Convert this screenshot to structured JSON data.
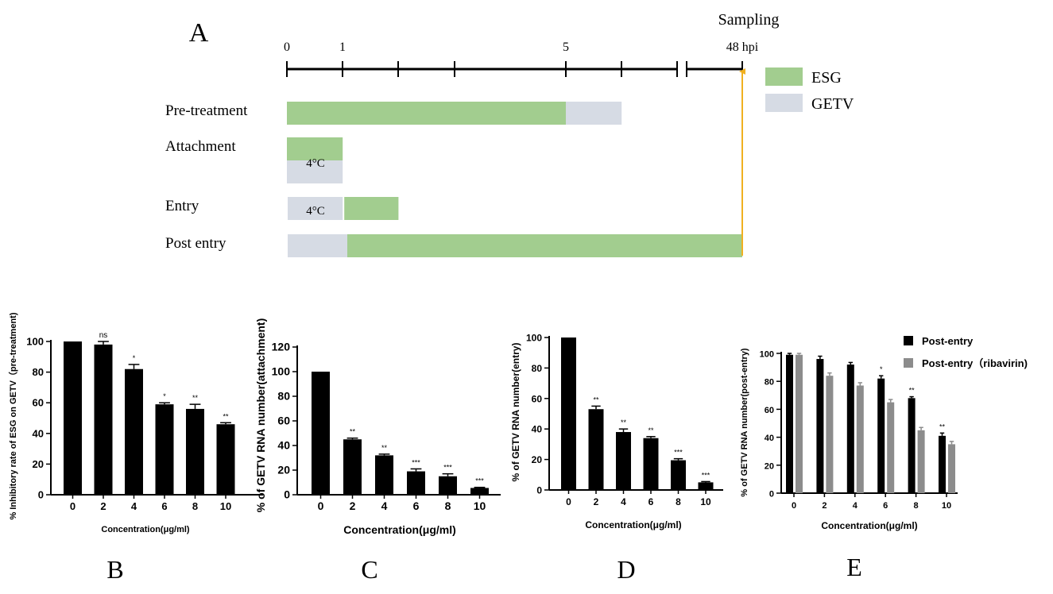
{
  "colors": {
    "esg": "#a2cd8f",
    "getv": "#d6dbe4",
    "arrow": "#f0b020",
    "bar_primary": "#000000",
    "bar_secondary": "#8c8c8c"
  },
  "panel_a": {
    "label": "A",
    "sampling_label": "Sampling",
    "timeline": {
      "ticks": [
        "0",
        "1",
        "5",
        "48 hpi"
      ],
      "unit_note": "hours post infection"
    },
    "legend": [
      {
        "name": "ESG",
        "color_key": "esg"
      },
      {
        "name": "GETV",
        "color_key": "getv"
      }
    ],
    "rows": [
      {
        "name": "Pre-treatment",
        "segments": [
          {
            "agent": "ESG",
            "start_h": 0,
            "end_h": 5
          },
          {
            "agent": "GETV",
            "start_h": 5,
            "end_h": 6
          }
        ]
      },
      {
        "name": "Attachment",
        "note": "4°C",
        "segments": [
          {
            "agent": "ESG",
            "start_h": 0,
            "end_h": 1,
            "stacked": "top"
          },
          {
            "agent": "GETV",
            "start_h": 0,
            "end_h": 1,
            "stacked": "bottom"
          }
        ]
      },
      {
        "name": "Entry",
        "note": "4°C",
        "segments": [
          {
            "agent": "GETV",
            "start_h": 0,
            "end_h": 1
          },
          {
            "agent": "ESG",
            "start_h": 1,
            "end_h": 2
          }
        ]
      },
      {
        "name": "Post entry",
        "segments": [
          {
            "agent": "GETV",
            "start_h": 0,
            "end_h": 1
          },
          {
            "agent": "ESG",
            "start_h": 1,
            "end_h": 48
          }
        ]
      }
    ]
  },
  "chart_data": [
    {
      "panel": "B",
      "type": "bar",
      "categories": [
        "0",
        "2",
        "4",
        "6",
        "8",
        "10"
      ],
      "series": [
        {
          "name": "ESG",
          "values": [
            100,
            98,
            82,
            59,
            56,
            46
          ],
          "errors": [
            0,
            2,
            3,
            1,
            3,
            1
          ],
          "sig": [
            "",
            "ns",
            "*",
            "*",
            "**",
            "**"
          ]
        }
      ],
      "title": "",
      "xlabel": "Concentration(μg/ml)",
      "ylabel": "% Inhibitory rate of ESG on GETV（pre-treatment)",
      "ylim": [
        0,
        100
      ],
      "yticks": [
        "0",
        "20",
        "40",
        "60",
        "80",
        "100"
      ],
      "grid": false
    },
    {
      "panel": "C",
      "type": "bar",
      "categories": [
        "0",
        "2",
        "4",
        "6",
        "8",
        "10"
      ],
      "series": [
        {
          "name": "ESG",
          "values": [
            100,
            45,
            32,
            19,
            15,
            5.5
          ],
          "errors": [
            0,
            1,
            1,
            2,
            2,
            0.5
          ],
          "sig": [
            "",
            "**",
            "**",
            "***",
            "***",
            "***"
          ]
        }
      ],
      "title": "",
      "xlabel": "Concentration(μg/ml)",
      "ylabel": "% of GETV RNA number(attachment)",
      "ylim": [
        0,
        120
      ],
      "yticks": [
        "0",
        "20",
        "40",
        "60",
        "80",
        "100",
        "120"
      ],
      "grid": false
    },
    {
      "panel": "D",
      "type": "bar",
      "categories": [
        "0",
        "2",
        "4",
        "6",
        "8",
        "10"
      ],
      "series": [
        {
          "name": "ESG",
          "values": [
            100,
            53,
            38,
            34,
            19.5,
            5
          ],
          "errors": [
            0,
            2,
            2,
            1,
            1,
            0.5
          ],
          "sig": [
            "",
            "**",
            "**",
            "**",
            "***",
            "***"
          ]
        }
      ],
      "title": "",
      "xlabel": "Concentration(μg/ml)",
      "ylabel": "% of GETV RNA number(entry)",
      "ylim": [
        0,
        100
      ],
      "yticks": [
        "0",
        "20",
        "40",
        "60",
        "80",
        "100"
      ],
      "grid": false
    },
    {
      "panel": "E",
      "type": "bar",
      "categories": [
        "0",
        "2",
        "4",
        "6",
        "8",
        "10"
      ],
      "series": [
        {
          "name": "Post-entry",
          "values": [
            99,
            96,
            92,
            82,
            68,
            41
          ],
          "errors": [
            1,
            2,
            1.5,
            2,
            1,
            2
          ],
          "sig": [
            "",
            "",
            "",
            "*",
            "**",
            "**"
          ]
        },
        {
          "name": "Post-entry（ribavirin)",
          "values": [
            99,
            84,
            77,
            65,
            45,
            35
          ],
          "errors": [
            1,
            2,
            2,
            2,
            2,
            2
          ],
          "sig": [
            "",
            "",
            "",
            "",
            "",
            ""
          ]
        }
      ],
      "title": "",
      "xlabel": "Concentration(μg/ml)",
      "ylabel": "% of GETV RNA number(post-entry)",
      "ylim": [
        0,
        100
      ],
      "yticks": [
        "0",
        "20",
        "40",
        "60",
        "80",
        "100"
      ],
      "legend_position": "top-right",
      "grid": false
    }
  ]
}
